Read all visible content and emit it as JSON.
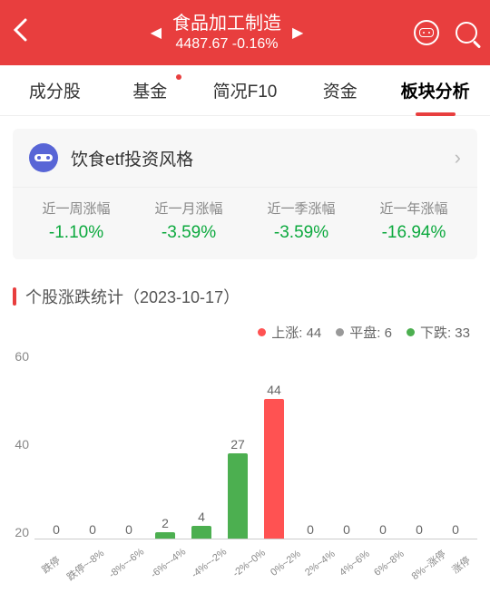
{
  "header": {
    "title": "食品加工制造",
    "value": "4487.67",
    "change": "-0.16%"
  },
  "tabs": [
    {
      "label": "成分股",
      "active": false,
      "dot": false
    },
    {
      "label": "基金",
      "active": false,
      "dot": true
    },
    {
      "label": "简况F10",
      "active": false,
      "dot": false
    },
    {
      "label": "资金",
      "active": false,
      "dot": false
    },
    {
      "label": "板块分析",
      "active": true,
      "dot": false
    }
  ],
  "info": {
    "title": "饮食etf投资风格",
    "metrics": [
      {
        "label": "近一周涨幅",
        "value": "-1.10%",
        "neg": true
      },
      {
        "label": "近一月涨幅",
        "value": "-3.59%",
        "neg": true
      },
      {
        "label": "近一季涨幅",
        "value": "-3.59%",
        "neg": true
      },
      {
        "label": "近一年涨幅",
        "value": "-16.94%",
        "neg": true
      }
    ]
  },
  "section_title": "个股涨跌统计（2023-10-17）",
  "legend": [
    {
      "label": "上涨: 44",
      "color": "red"
    },
    {
      "label": "平盘: 6",
      "color": "gray"
    },
    {
      "label": "下跌: 33",
      "color": "green"
    }
  ],
  "chart": {
    "ymax": 60,
    "yticks": [
      "60",
      "40",
      "20"
    ],
    "bars": [
      {
        "label": "跌停",
        "value": 0,
        "color": "green"
      },
      {
        "label": "跌停~-8%",
        "value": 0,
        "color": "green"
      },
      {
        "label": "-8%~-6%",
        "value": 0,
        "color": "green"
      },
      {
        "label": "-6%~-4%",
        "value": 2,
        "color": "green"
      },
      {
        "label": "-4%~-2%",
        "value": 4,
        "color": "green"
      },
      {
        "label": "-2%~0%",
        "value": 27,
        "color": "green"
      },
      {
        "label": "0%~2%",
        "value": 44,
        "color": "red"
      },
      {
        "label": "2%~4%",
        "value": 0,
        "color": "red"
      },
      {
        "label": "4%~6%",
        "value": 0,
        "color": "red"
      },
      {
        "label": "6%~8%",
        "value": 0,
        "color": "red"
      },
      {
        "label": "8%~涨停",
        "value": 0,
        "color": "red"
      },
      {
        "label": "涨停",
        "value": 0,
        "color": "red"
      }
    ]
  }
}
